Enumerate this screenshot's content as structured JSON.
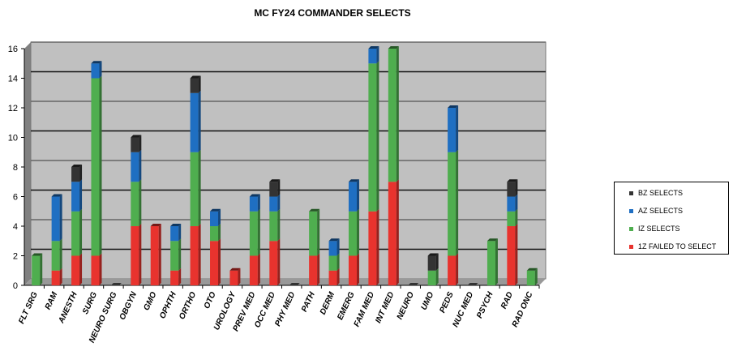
{
  "chart_data": {
    "type": "bar",
    "stacked": true,
    "title": "MC FY24 COMMANDER SELECTS",
    "xlabel": "",
    "ylabel": "",
    "ylim": [
      0,
      16
    ],
    "yticks": [
      0,
      2,
      4,
      6,
      8,
      10,
      12,
      14,
      16
    ],
    "grid": true,
    "legend_position": "right",
    "categories": [
      "FLT SRG",
      "RAM",
      "ANESTH",
      "SURG",
      "NEURO SURG",
      "OBGYN",
      "GMO",
      "OPHTH",
      "ORTHO",
      "OTO",
      "UROLOGY",
      "PREV MED",
      "OCC MED",
      "PHY MED",
      "PATH",
      "DERM",
      "EMERG",
      "FAM MED",
      "INT MED",
      "NEURO",
      "UMO",
      "PEDS",
      "NUC MED",
      "PSYCH",
      "RAD",
      "RAD ONC"
    ],
    "series": [
      {
        "name": "1Z FAILED TO SELECT",
        "color": "#e8332e",
        "values": [
          0,
          1,
          2,
          2,
          0,
          4,
          4,
          1,
          4,
          3,
          1,
          2,
          3,
          0,
          2,
          1,
          2,
          5,
          7,
          0,
          0,
          2,
          0,
          0,
          4,
          0
        ]
      },
      {
        "name": "IZ SELECTS",
        "color": "#4fae4f",
        "values": [
          2,
          2,
          3,
          12,
          0,
          3,
          0,
          2,
          5,
          1,
          0,
          3,
          2,
          0,
          3,
          1,
          3,
          10,
          9,
          0,
          1,
          7,
          0,
          3,
          1,
          1
        ]
      },
      {
        "name": "AZ SELECTS",
        "color": "#1f6fc2",
        "values": [
          0,
          3,
          2,
          1,
          0,
          2,
          0,
          1,
          4,
          1,
          0,
          1,
          1,
          0,
          0,
          1,
          2,
          1,
          0,
          0,
          0,
          3,
          0,
          0,
          1,
          0
        ]
      },
      {
        "name": "BZ SELECTS",
        "color": "#333333",
        "values": [
          0,
          0,
          1,
          0,
          0,
          1,
          0,
          0,
          1,
          0,
          0,
          0,
          1,
          0,
          0,
          0,
          0,
          0,
          0,
          0,
          1,
          0,
          0,
          0,
          1,
          0
        ]
      }
    ]
  }
}
